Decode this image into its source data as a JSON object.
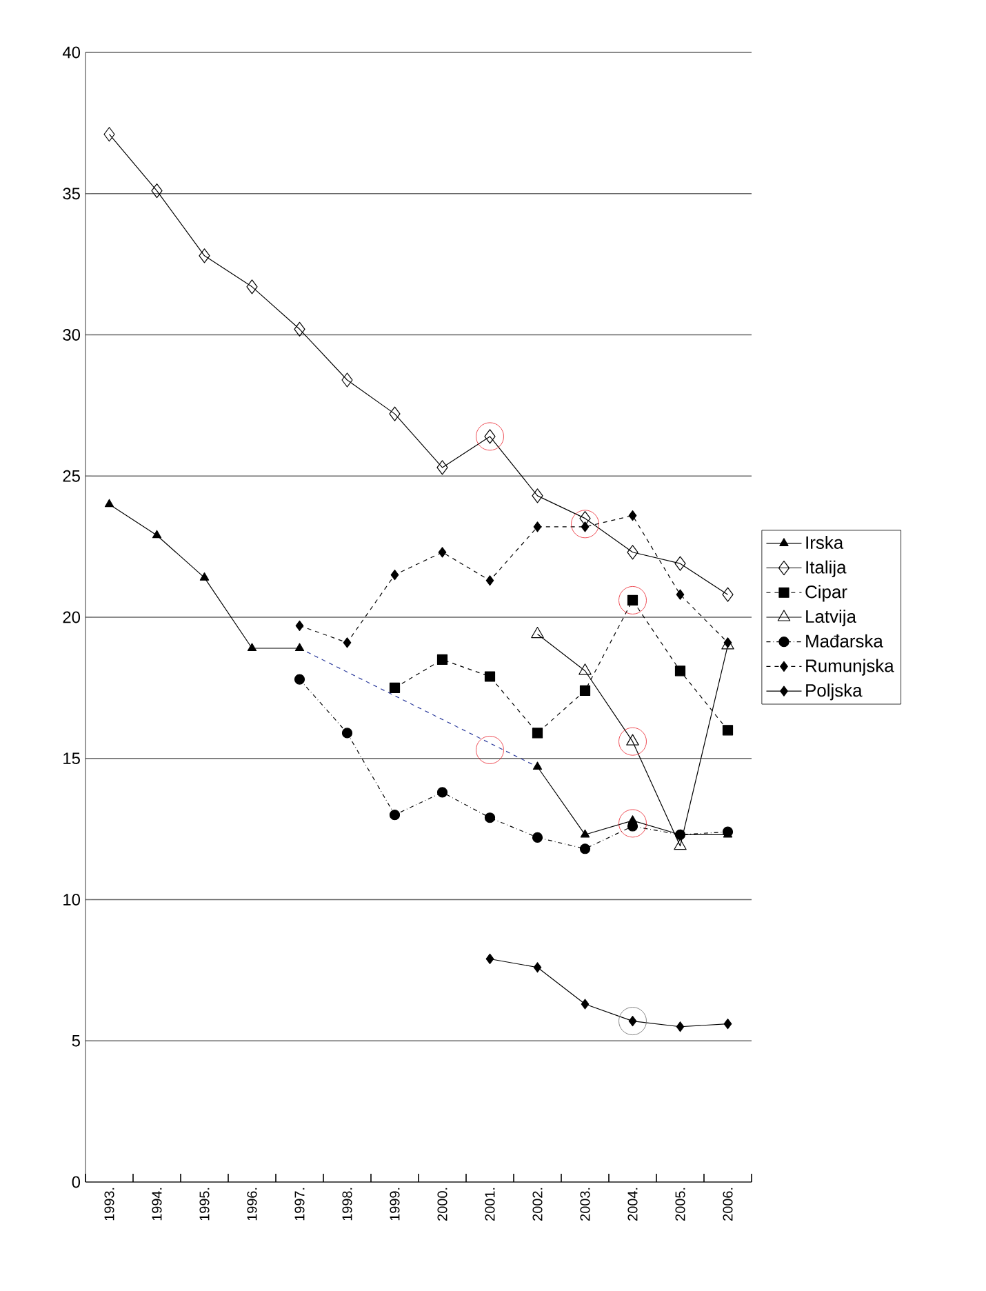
{
  "chart_data": {
    "type": "line",
    "categories": [
      "1993.",
      "1994.",
      "1995.",
      "1996.",
      "1997.",
      "1998.",
      "1999.",
      "2000.",
      "2001.",
      "2002.",
      "2003.",
      "2004.",
      "2005.",
      "2006."
    ],
    "ylim": [
      0,
      40
    ],
    "yticks": [
      0,
      5,
      10,
      15,
      20,
      25,
      30,
      35,
      40
    ],
    "grid": "y",
    "legend": "right",
    "series": [
      {
        "name": "Irska",
        "color": "#000000",
        "marker": "triangle",
        "line_style": "solid",
        "values": [
          24.0,
          22.9,
          21.4,
          18.9,
          18.9,
          null,
          null,
          null,
          null,
          14.7,
          12.3,
          12.8,
          12.3,
          12.3
        ]
      },
      {
        "name": "Italija",
        "color": "#000000",
        "marker": "diamond",
        "line_style": "solid",
        "values": [
          37.1,
          35.1,
          32.8,
          31.7,
          30.2,
          28.4,
          27.2,
          25.3,
          26.4,
          24.3,
          23.5,
          22.3,
          21.9,
          20.8
        ]
      },
      {
        "name": "Cipar",
        "color": "#000000",
        "marker": "square",
        "line_style": "dashed",
        "values": [
          null,
          null,
          null,
          null,
          null,
          null,
          17.5,
          18.5,
          17.9,
          15.9,
          17.4,
          20.6,
          18.1,
          16.0
        ]
      },
      {
        "name": "Latvija",
        "color": "#000000",
        "marker": "triangle",
        "line_style": "solid",
        "values": [
          null,
          null,
          null,
          null,
          null,
          null,
          null,
          null,
          null,
          19.4,
          18.1,
          15.6,
          11.9,
          19.0
        ]
      },
      {
        "name": "Mađarska",
        "color": "#000000",
        "marker": "circle",
        "line_style": "dotted",
        "values": [
          null,
          null,
          null,
          null,
          17.8,
          15.9,
          13.0,
          13.8,
          12.9,
          12.2,
          11.8,
          12.6,
          12.3,
          12.4
        ]
      },
      {
        "name": "Rumunjska",
        "color": "#000000",
        "marker": "diamond",
        "line_style": "dashed",
        "values": [
          null,
          null,
          null,
          null,
          19.7,
          19.1,
          21.5,
          22.3,
          21.3,
          23.2,
          23.2,
          23.6,
          20.8,
          19.1
        ]
      },
      {
        "name": "Poljska",
        "color": "#000000",
        "marker": "diamond",
        "line_style": "solid",
        "values": [
          null,
          null,
          null,
          null,
          null,
          null,
          null,
          null,
          7.9,
          7.6,
          6.3,
          5.7,
          5.5,
          5.6
        ]
      },
      {
        "type": "line",
        "color": "#2b3a9c",
        "marker": "none",
        "line_style": "dashed",
        "x": [
          "1997.",
          "2002."
        ],
        "values": [
          18.9,
          14.7
        ]
      },
      {
        "type": "scatter",
        "color": "#e8202a",
        "marker": "circle",
        "x": [
          "2001.",
          "2003.",
          "2004.",
          "2001.",
          "2004.",
          "2004."
        ],
        "values": [
          26.4,
          23.3,
          20.6,
          15.3,
          15.6,
          12.7
        ]
      },
      {
        "type": "scatter",
        "color": "#666666",
        "marker": "circle",
        "x": [
          "2004."
        ],
        "values": [
          5.7
        ]
      }
    ]
  }
}
